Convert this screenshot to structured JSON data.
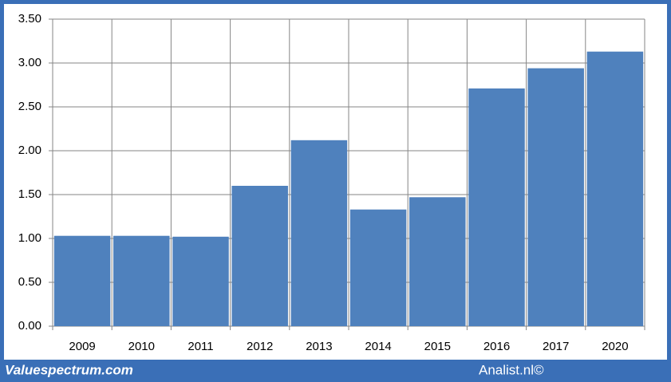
{
  "chart_data": {
    "type": "bar",
    "categories": [
      "2009",
      "2010",
      "2011",
      "2012",
      "2013",
      "2014",
      "2015",
      "2016",
      "2017",
      "2020"
    ],
    "values": [
      1.03,
      1.03,
      1.02,
      1.6,
      2.12,
      1.33,
      1.47,
      2.71,
      2.94,
      3.13
    ],
    "color": "#4f81bd",
    "ylim": [
      0,
      3.5
    ],
    "yticks": [
      {
        "value": 0,
        "label": "0.00"
      },
      {
        "value": 0.5,
        "label": "0.50"
      },
      {
        "value": 1,
        "label": "1.00"
      },
      {
        "value": 1.5,
        "label": "1.50"
      },
      {
        "value": 2,
        "label": "2.00"
      },
      {
        "value": 2.5,
        "label": "2.50"
      },
      {
        "value": 3,
        "label": "3.00"
      },
      {
        "value": 3.5,
        "label": "3.50"
      }
    ],
    "grid": true,
    "footer_left": "Valuespectrum.com",
    "footer_right": "Analist.nl©"
  }
}
